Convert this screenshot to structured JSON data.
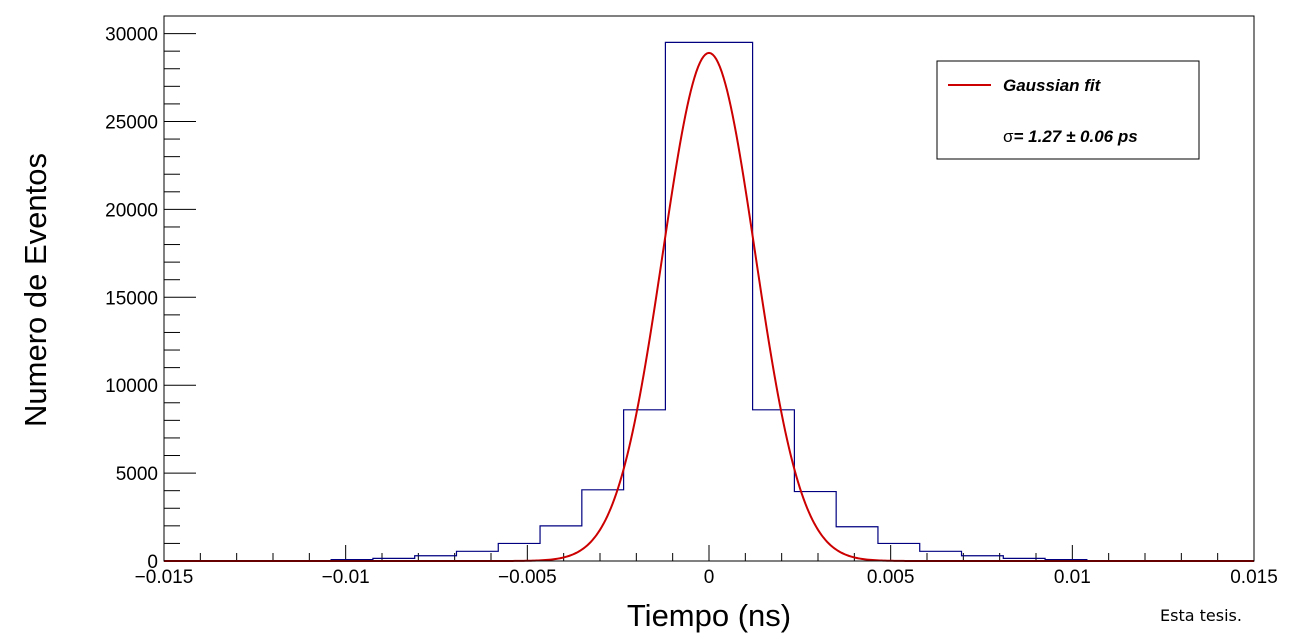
{
  "chart_data": {
    "type": "histogram+line",
    "xlabel": "Tiempo (ns)",
    "ylabel": "Numero de Eventos",
    "xlim": [
      -0.015,
      0.015
    ],
    "ylim": [
      0,
      31000
    ],
    "x_ticks": [
      -0.015,
      -0.01,
      -0.005,
      0,
      0.005,
      0.01,
      0.015
    ],
    "x_tick_labels": [
      "−0.015",
      "−0.01",
      "−0.005",
      "0",
      "0.005",
      "0.01",
      "0.015"
    ],
    "y_ticks": [
      0,
      5000,
      10000,
      15000,
      20000,
      25000,
      30000
    ],
    "y_tick_labels": [
      "0",
      "5000",
      "10000",
      "15000",
      "20000",
      "25000",
      "30000"
    ],
    "grid": false,
    "legend_position": "top-right",
    "histogram": {
      "color": "#000080",
      "bin_edges": [
        -0.0104,
        -0.00925,
        -0.0081,
        -0.00695,
        -0.0058,
        -0.00465,
        -0.0035,
        -0.00235,
        -0.0012,
        0.0012,
        0.00235,
        0.0035,
        0.00465,
        0.0058,
        0.00695,
        0.0081,
        0.00925,
        0.0104
      ],
      "counts": [
        80,
        150,
        300,
        550,
        1000,
        2000,
        4050,
        8600,
        29500,
        8600,
        3950,
        1950,
        1000,
        550,
        300,
        150,
        80
      ]
    },
    "series": [
      {
        "name": "Gaussian fit",
        "type": "line",
        "color": "#cc0000",
        "mean": 0,
        "amplitude": 28900,
        "sigma": 0.00127
      }
    ],
    "legend": {
      "entry": "Gaussian fit",
      "result_symbol": "σ",
      "result_text": "= 1.27  ± 0.06 ps"
    }
  },
  "footer_note": "Esta tesis."
}
